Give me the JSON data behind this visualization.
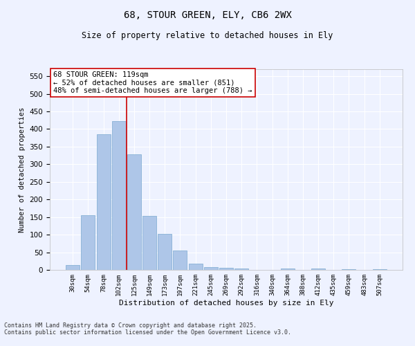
{
  "title1": "68, STOUR GREEN, ELY, CB6 2WX",
  "title2": "Size of property relative to detached houses in Ely",
  "xlabel": "Distribution of detached houses by size in Ely",
  "ylabel": "Number of detached properties",
  "categories": [
    "30sqm",
    "54sqm",
    "78sqm",
    "102sqm",
    "125sqm",
    "149sqm",
    "173sqm",
    "197sqm",
    "221sqm",
    "245sqm",
    "269sqm",
    "292sqm",
    "316sqm",
    "340sqm",
    "364sqm",
    "388sqm",
    "412sqm",
    "435sqm",
    "459sqm",
    "483sqm",
    "507sqm"
  ],
  "values": [
    13,
    155,
    385,
    422,
    328,
    153,
    102,
    55,
    18,
    8,
    5,
    4,
    0,
    0,
    3,
    0,
    4,
    0,
    2,
    0,
    2
  ],
  "bar_color": "#aec6e8",
  "bar_edge_color": "#7aaad0",
  "vline_position": 3.5,
  "vline_color": "#cc0000",
  "annotation_text": "68 STOUR GREEN: 119sqm\n← 52% of detached houses are smaller (851)\n48% of semi-detached houses are larger (788) →",
  "annotation_box_color": "#ffffff",
  "annotation_box_edge": "#cc0000",
  "ylim": [
    0,
    570
  ],
  "yticks": [
    0,
    50,
    100,
    150,
    200,
    250,
    300,
    350,
    400,
    450,
    500,
    550
  ],
  "background_color": "#eef2ff",
  "grid_color": "#ffffff",
  "footer1": "Contains HM Land Registry data © Crown copyright and database right 2025.",
  "footer2": "Contains public sector information licensed under the Open Government Licence v3.0."
}
